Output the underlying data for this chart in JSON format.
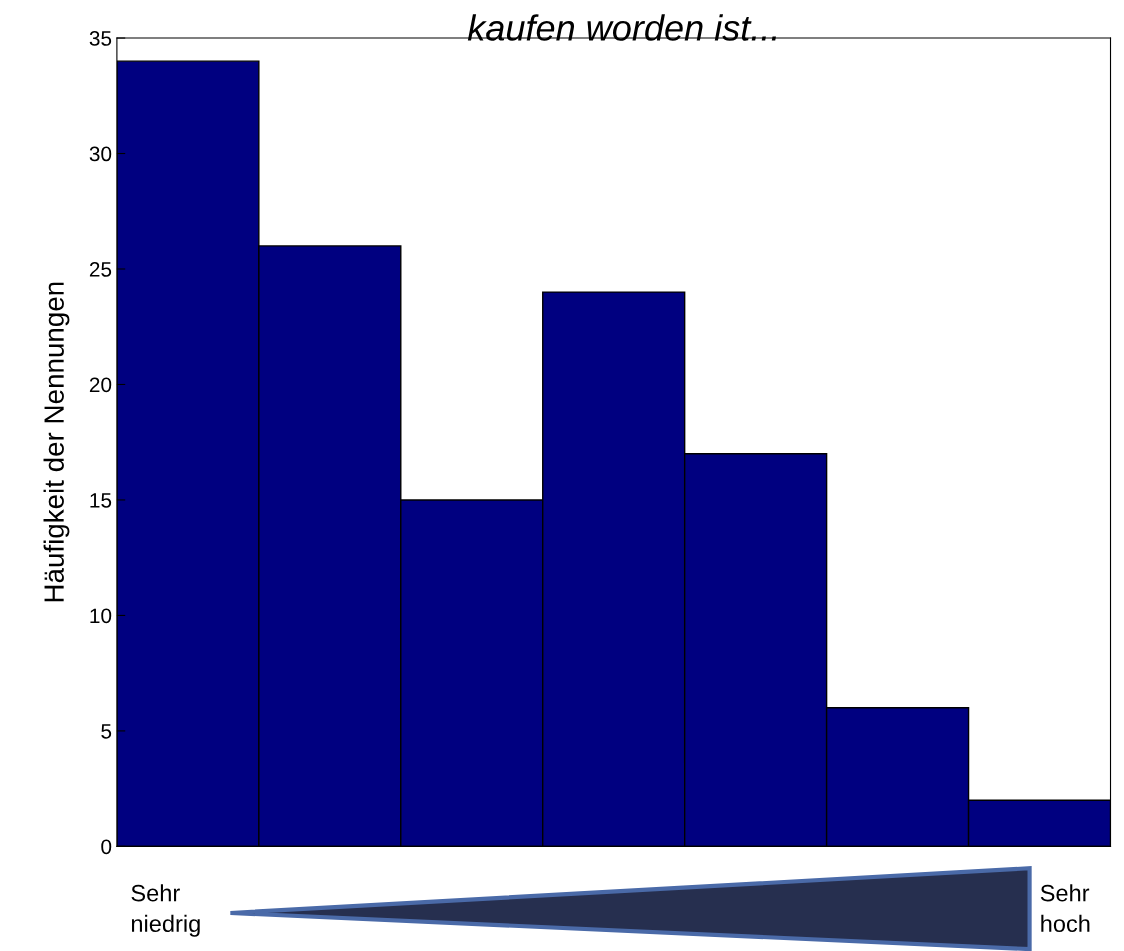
{
  "chart_data": {
    "type": "bar",
    "title": "kaufen worden ist...",
    "ylabel": "Häufigkeit der Nennungen",
    "categories": [
      null,
      null,
      null,
      null,
      null,
      null,
      null
    ],
    "values": [
      34,
      26,
      15,
      24,
      17,
      6,
      2
    ],
    "color": "#000080",
    "ylim": [
      0,
      35
    ],
    "yticks": [
      0,
      5,
      10,
      15,
      20,
      25,
      30,
      35
    ],
    "grid": false,
    "tick_labels": "y",
    "annotations": [
      "Sehr\nniedrig",
      "Sehr\nhoch"
    ]
  }
}
